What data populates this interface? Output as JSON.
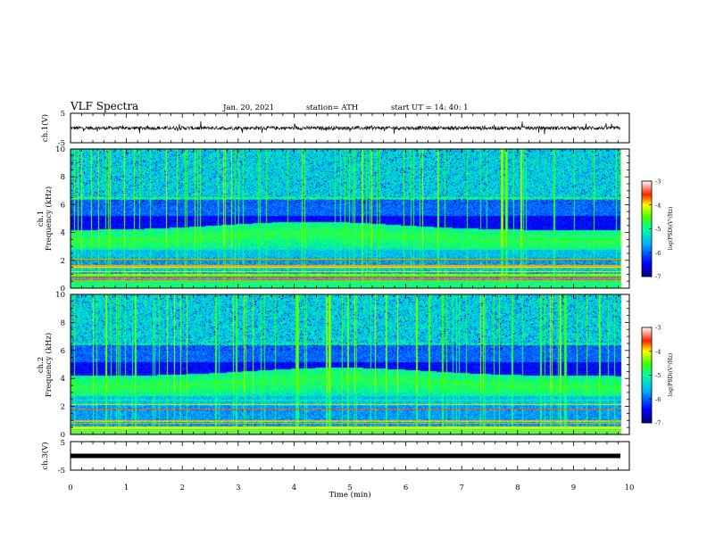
{
  "header": {
    "title": "VLF Spectra",
    "date": "Jan. 20, 2021",
    "station": "station= ATH",
    "start": "start  UT =   14: 40: 1"
  },
  "chart_data": [
    {
      "type": "line",
      "name": "ch1-waveform",
      "ylabel": "ch.1(V)",
      "ylim": [
        -5,
        5
      ],
      "y_ticks": [
        "5",
        "-5"
      ],
      "xlim": [
        0,
        10
      ],
      "baseline_level": 0,
      "data_extent_min": 9.84
    },
    {
      "type": "heatmap",
      "name": "ch1-spectrogram",
      "ylabel": "ch.1\nFrequency (kHz)",
      "ylabel_lines": [
        "ch.1",
        "Frequency (kHz)"
      ],
      "ylim": [
        0,
        10
      ],
      "y_ticks": [
        "0",
        "2",
        "4",
        "6",
        "8",
        "10"
      ],
      "xlim": [
        0,
        10
      ],
      "data_extent_min": 9.84,
      "colorbar": {
        "label": "log(PSD)(V²/Hz)",
        "range": [
          -7,
          -3
        ],
        "ticks": [
          "-3",
          "-4",
          "-5",
          "-6",
          "-7"
        ],
        "colors": [
          "#000080",
          "#0000ff",
          "#00ffff",
          "#00ff00",
          "#ffff00",
          "#ff0000",
          "#ffffff"
        ]
      }
    },
    {
      "type": "heatmap",
      "name": "ch2-spectrogram",
      "ylabel": "ch.2\nFrequency (kHz)",
      "ylabel_lines": [
        "ch.2",
        "Frequency (kHz)"
      ],
      "ylim": [
        0,
        10
      ],
      "y_ticks": [
        "0",
        "2",
        "4",
        "6",
        "8",
        "10"
      ],
      "xlim": [
        0,
        10
      ],
      "data_extent_min": 9.84,
      "colorbar": {
        "label": "log(PSD)(V²/Hz)",
        "range": [
          -7,
          -3
        ],
        "ticks": [
          "-3",
          "-4",
          "-5",
          "-6",
          "-7"
        ],
        "colors": [
          "#000080",
          "#0000ff",
          "#00ffff",
          "#00ff00",
          "#ffff00",
          "#ff0000",
          "#ffffff"
        ]
      }
    },
    {
      "type": "line",
      "name": "ch3-waveform",
      "ylabel": "ch.3(V)",
      "ylim": [
        -5,
        5
      ],
      "y_ticks": [
        "5",
        "-5"
      ],
      "xlim": [
        0,
        10
      ],
      "constant_level": 0,
      "data_extent_min": 9.84
    }
  ],
  "xaxis": {
    "label": "Time (min)",
    "ticks": [
      "0",
      "1",
      "2",
      "3",
      "4",
      "5",
      "6",
      "7",
      "8",
      "9",
      "10"
    ]
  }
}
